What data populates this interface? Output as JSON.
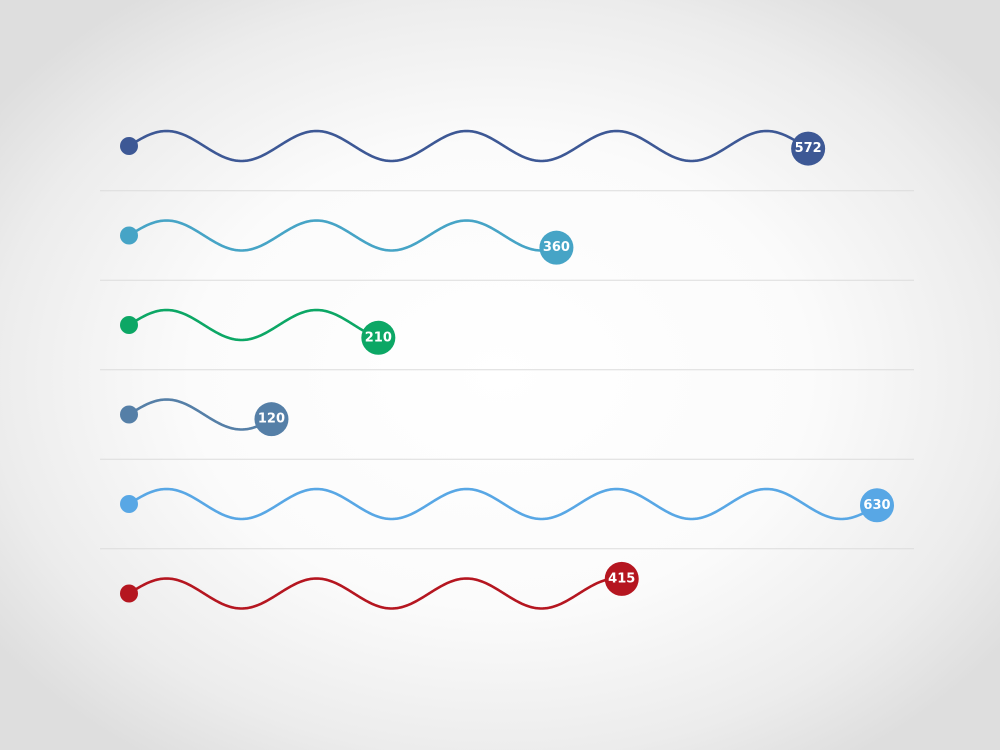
{
  "chart_data": {
    "type": "bar",
    "style": "wavy-line-lollipop",
    "title": "",
    "xlabel": "",
    "ylabel": "",
    "xlim": [
      0,
      630
    ],
    "grid": false,
    "series": [
      {
        "value": 572,
        "label": "572",
        "color": "#3d5895"
      },
      {
        "value": 360,
        "label": "360",
        "color": "#46a4c6"
      },
      {
        "value": 210,
        "label": "210",
        "color": "#0ca765"
      },
      {
        "value": 120,
        "label": "120",
        "color": "#557fa7"
      },
      {
        "value": 630,
        "label": "630",
        "color": "#58a7e5"
      },
      {
        "value": 415,
        "label": "415",
        "color": "#b51620"
      }
    ]
  }
}
